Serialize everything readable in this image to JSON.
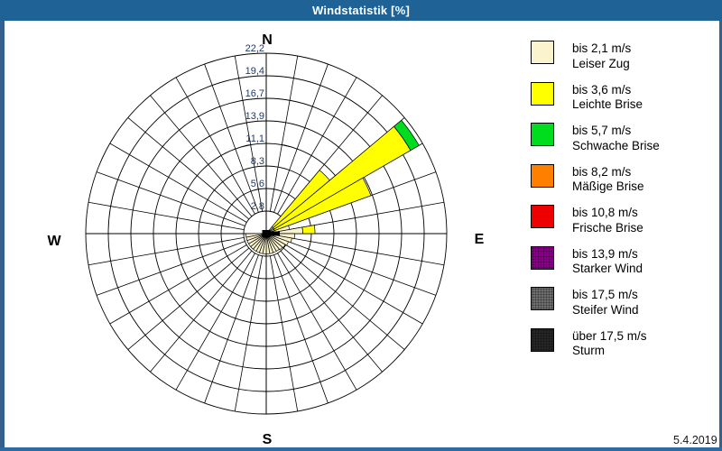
{
  "window": {
    "title": "Windstatistik [%]",
    "status_date": "5.4.2019",
    "colors": {
      "titlebar": "#1E6296",
      "border": "#33608C",
      "bottom_strip": "#2E6BA3",
      "background": "#FFFFFF",
      "grid": "#000000",
      "tick_label": "#1F3864"
    }
  },
  "legend": {
    "items": [
      {
        "id": "leiser_zug",
        "speed": "bis 2,1 m/s",
        "name": "Leiser Zug",
        "color": "#FAF3CE",
        "textured": false
      },
      {
        "id": "leichte_brise",
        "speed": "bis 3,6 m/s",
        "name": "Leichte Brise",
        "color": "#FFFF00",
        "textured": false
      },
      {
        "id": "schwache_brise",
        "speed": "bis 5,7 m/s",
        "name": "Schwache Brise",
        "color": "#00DC1E",
        "textured": false
      },
      {
        "id": "maessige_brise",
        "speed": "bis 8,2 m/s",
        "name": "Mäßige Brise",
        "color": "#FF8000",
        "textured": false
      },
      {
        "id": "frische_brise",
        "speed": "bis 10,8 m/s",
        "name": "Frische Brise",
        "color": "#EE0000",
        "textured": false
      },
      {
        "id": "starker_wind",
        "speed": "bis 13,9 m/s",
        "name": "Starker Wind",
        "color": "#8A008A",
        "textured": true
      },
      {
        "id": "steifer_wind",
        "speed": "bis 17,5 m/s",
        "name": "Steifer Wind",
        "color": "#6E6E6E",
        "textured": true
      },
      {
        "id": "sturm",
        "speed": "über 17,5 m/s",
        "name": "Sturm",
        "color": "#262626",
        "textured": true
      }
    ]
  },
  "chart_data": {
    "type": "wind_rose",
    "title": "Windstatistik [%]",
    "units": "%",
    "sector_width_deg": 10,
    "max_value": 22.2,
    "rings": {
      "values": [
        2.775,
        5.55,
        8.325,
        11.1,
        13.875,
        16.65,
        19.425,
        22.2
      ],
      "labels": [
        "2,8",
        "5,6",
        "8,3",
        "11,1",
        "13,9",
        "16,7",
        "19,4",
        "22,2"
      ]
    },
    "cardinals": [
      {
        "dir": "N",
        "deg": 0
      },
      {
        "dir": "E",
        "deg": 90
      },
      {
        "dir": "S",
        "deg": 180
      },
      {
        "dir": "W",
        "deg": 270
      }
    ],
    "sectors": [
      {
        "from_deg": 40,
        "to_deg": 50,
        "segments": [
          {
            "class": "leiser_zug",
            "to": 1.1
          },
          {
            "class": "leichte_brise",
            "to": 10.2
          }
        ]
      },
      {
        "from_deg": 50,
        "to_deg": 60,
        "segments": [
          {
            "class": "leiser_zug",
            "to": 1.1
          },
          {
            "class": "leichte_brise",
            "to": 20.5
          },
          {
            "class": "schwache_brise",
            "to": 21.7
          }
        ]
      },
      {
        "from_deg": 60,
        "to_deg": 70,
        "segments": [
          {
            "class": "leiser_zug",
            "to": 1.1
          },
          {
            "class": "leichte_brise",
            "to": 13.7
          }
        ]
      },
      {
        "from_deg": 70,
        "to_deg": 80,
        "segments": [
          {
            "class": "leiser_zug",
            "to": 2.9
          }
        ]
      },
      {
        "from_deg": 80,
        "to_deg": 90,
        "segments": [
          {
            "class": "leiser_zug",
            "to": 4.5
          },
          {
            "class": "leichte_brise",
            "to": 6.0
          }
        ]
      },
      {
        "from_deg": 90,
        "to_deg": 100,
        "segments": [
          {
            "class": "leiser_zug",
            "to": 3.5
          }
        ]
      },
      {
        "from_deg": 100,
        "to_deg": 110,
        "segments": [
          {
            "class": "leiser_zug",
            "to": 3.2
          }
        ]
      },
      {
        "from_deg": 110,
        "to_deg": 120,
        "segments": [
          {
            "class": "leiser_zug",
            "to": 2.9
          }
        ]
      },
      {
        "from_deg": 120,
        "to_deg": 130,
        "segments": [
          {
            "class": "leiser_zug",
            "to": 2.7
          }
        ]
      },
      {
        "from_deg": 130,
        "to_deg": 140,
        "segments": [
          {
            "class": "leiser_zug",
            "to": 2.6
          }
        ]
      },
      {
        "from_deg": 140,
        "to_deg": 150,
        "segments": [
          {
            "class": "leiser_zug",
            "to": 2.5
          }
        ]
      },
      {
        "from_deg": 150,
        "to_deg": 160,
        "segments": [
          {
            "class": "leiser_zug",
            "to": 2.5
          }
        ]
      },
      {
        "from_deg": 160,
        "to_deg": 170,
        "segments": [
          {
            "class": "leiser_zug",
            "to": 2.5
          }
        ]
      },
      {
        "from_deg": 170,
        "to_deg": 180,
        "segments": [
          {
            "class": "leiser_zug",
            "to": 2.5
          }
        ]
      },
      {
        "from_deg": 180,
        "to_deg": 190,
        "segments": [
          {
            "class": "leiser_zug",
            "to": 2.5
          }
        ]
      },
      {
        "from_deg": 190,
        "to_deg": 200,
        "segments": [
          {
            "class": "leiser_zug",
            "to": 2.5
          }
        ]
      },
      {
        "from_deg": 200,
        "to_deg": 210,
        "segments": [
          {
            "class": "leiser_zug",
            "to": 2.5
          }
        ]
      },
      {
        "from_deg": 210,
        "to_deg": 220,
        "segments": [
          {
            "class": "leiser_zug",
            "to": 2.5
          }
        ]
      },
      {
        "from_deg": 220,
        "to_deg": 230,
        "segments": [
          {
            "class": "leiser_zug",
            "to": 2.5
          }
        ]
      },
      {
        "from_deg": 230,
        "to_deg": 240,
        "segments": [
          {
            "class": "leiser_zug",
            "to": 2.5
          }
        ]
      },
      {
        "from_deg": 240,
        "to_deg": 250,
        "segments": [
          {
            "class": "leiser_zug",
            "to": 2.5
          }
        ]
      },
      {
        "from_deg": 250,
        "to_deg": 260,
        "segments": [
          {
            "class": "leiser_zug",
            "to": 2.5
          }
        ]
      },
      {
        "from_deg": 260,
        "to_deg": 270,
        "segments": [
          {
            "class": "leiser_zug",
            "to": 2.5
          }
        ]
      }
    ]
  }
}
